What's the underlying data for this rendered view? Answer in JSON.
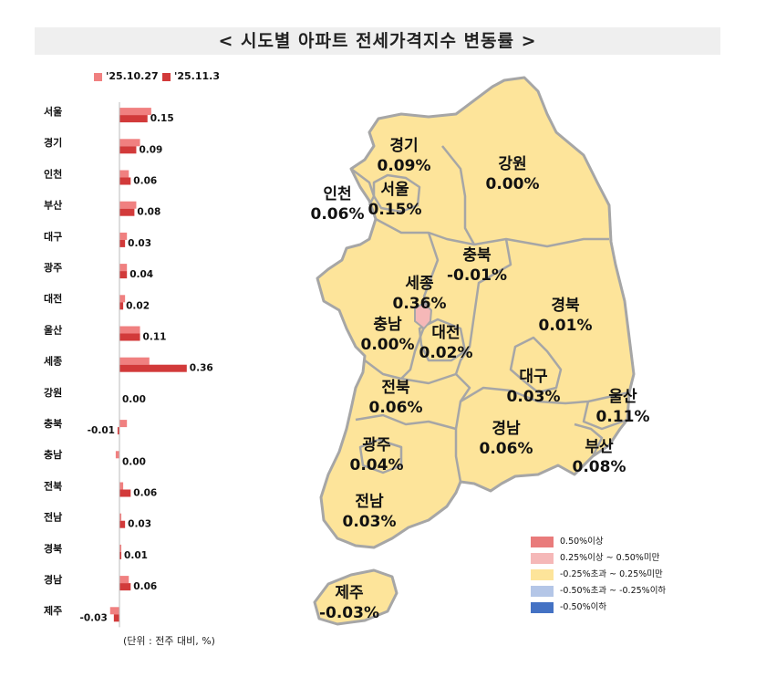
{
  "title": "< 시도별 아파트 전세가격지수 변동률 >",
  "unit_note": "(단위 : 전주 대비, %)",
  "colors": {
    "series_prev": "#f08080",
    "series_curr": "#d23a3a",
    "map_fill": "#fde49a",
    "map_sejong": "#f5b8b8",
    "map_stroke": "#a6a6a6"
  },
  "chart_data": {
    "type": "bar",
    "orientation": "horizontal",
    "categories": [
      "서울",
      "경기",
      "인천",
      "부산",
      "대구",
      "광주",
      "대전",
      "울산",
      "세종",
      "강원",
      "충북",
      "충남",
      "전북",
      "전남",
      "경북",
      "경남",
      "제주"
    ],
    "series": [
      {
        "name": "'25.10.27",
        "values": [
          0.17,
          0.11,
          0.05,
          0.09,
          0.04,
          0.04,
          0.03,
          0.11,
          0.16,
          0.0,
          0.04,
          -0.02,
          0.02,
          0.01,
          0.01,
          0.05,
          -0.05
        ]
      },
      {
        "name": "'25.11.3",
        "values": [
          0.15,
          0.09,
          0.06,
          0.08,
          0.03,
          0.04,
          0.02,
          0.11,
          0.36,
          0.0,
          -0.01,
          0.0,
          0.06,
          0.03,
          0.01,
          0.06,
          -0.03
        ]
      }
    ],
    "data_labels": [
      "0.15",
      "0.09",
      "0.06",
      "0.08",
      "0.03",
      "0.04",
      "0.02",
      "0.11",
      "0.36",
      "0.00",
      "-0.01",
      "0.00",
      "0.06",
      "0.03",
      "0.01",
      "0.06",
      "-0.03"
    ],
    "legend_position": "top",
    "grid": false
  },
  "map": {
    "regions": [
      {
        "name": "경기",
        "value": "0.09%"
      },
      {
        "name": "인천",
        "value": "0.06%"
      },
      {
        "name": "서울",
        "value": "0.15%"
      },
      {
        "name": "강원",
        "value": "0.00%"
      },
      {
        "name": "충북",
        "value": "-0.01%"
      },
      {
        "name": "세종",
        "value": "0.36%"
      },
      {
        "name": "충남",
        "value": "0.00%"
      },
      {
        "name": "대전",
        "value": "0.02%"
      },
      {
        "name": "경북",
        "value": "0.01%"
      },
      {
        "name": "전북",
        "value": "0.06%"
      },
      {
        "name": "대구",
        "value": "0.03%"
      },
      {
        "name": "울산",
        "value": "0.11%"
      },
      {
        "name": "경남",
        "value": "0.06%"
      },
      {
        "name": "부산",
        "value": "0.08%"
      },
      {
        "name": "광주",
        "value": "0.04%"
      },
      {
        "name": "전남",
        "value": "0.03%"
      },
      {
        "name": "제주",
        "value": "-0.03%"
      }
    ],
    "legend": [
      {
        "label": "0.50%이상",
        "color": "#e97b7b"
      },
      {
        "label": "0.25%이상 ~ 0.50%미만",
        "color": "#f5b8b8"
      },
      {
        "label": "-0.25%초과 ~ 0.25%미만",
        "color": "#fde49a"
      },
      {
        "label": "-0.50%초과 ~ -0.25%이하",
        "color": "#b4c6e7"
      },
      {
        "label": "-0.50%이하",
        "color": "#4472c4"
      }
    ]
  }
}
